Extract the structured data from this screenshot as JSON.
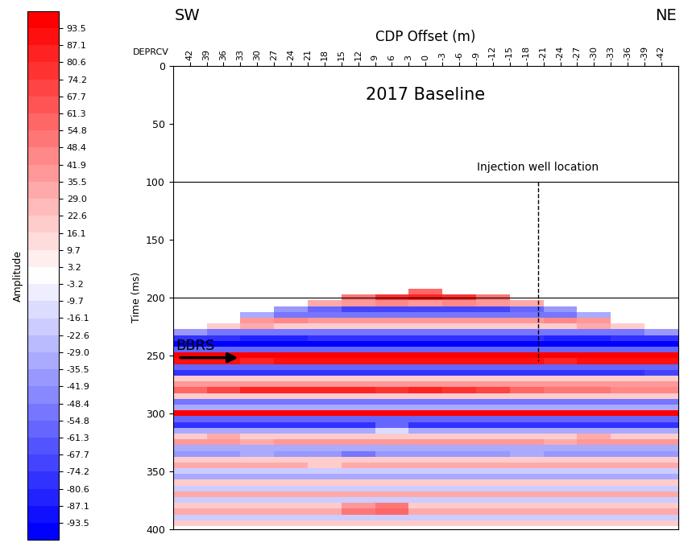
{
  "chart_data": {
    "type": "heatmap",
    "title": "2017 Baseline",
    "xlabel": "CDP Offset (m)",
    "ylabel": "Time (ms)",
    "x_header": "DEPRCV",
    "left_end_label": "SW",
    "right_end_label": "NE",
    "xlim": [
      45,
      -45
    ],
    "xticks": [
      42,
      39,
      36,
      33,
      30,
      27,
      24,
      21,
      18,
      15,
      12,
      9,
      6,
      3,
      0,
      -3,
      -6,
      -9,
      -12,
      -15,
      -18,
      -21,
      -24,
      -27,
      -30,
      -33,
      -36,
      -39,
      -42
    ],
    "ylim": [
      400,
      0
    ],
    "yticks": [
      0,
      50,
      100,
      150,
      200,
      250,
      300,
      350,
      400
    ],
    "time_lines": [
      100,
      200
    ],
    "injection_well": {
      "label": "Injection well location",
      "x": -20,
      "t_top": 100,
      "t_bottom": 255
    },
    "marker_arrow": {
      "label": "BBRS",
      "x": 33,
      "t": 252
    },
    "colorbar": {
      "label": "Amplitude",
      "range": [
        -100,
        100
      ],
      "ticks": [
        93.5,
        87.1,
        80.6,
        74.2,
        67.7,
        61.3,
        54.8,
        48.4,
        41.9,
        35.5,
        29.0,
        22.6,
        16.1,
        9.7,
        3.2,
        -3.2,
        -9.7,
        -16.1,
        -22.6,
        -29.0,
        -35.5,
        -41.9,
        -48.4,
        -54.8,
        -61.3,
        -67.7,
        -74.2,
        -80.6,
        -87.1,
        -93.5
      ]
    },
    "x": [
      42,
      36,
      30,
      24,
      18,
      12,
      6,
      0,
      -6,
      -12,
      -18,
      -24,
      -30,
      -36,
      -42
    ],
    "t": [
      195,
      200,
      205,
      210,
      215,
      220,
      225,
      230,
      235,
      240,
      245,
      250,
      255,
      260,
      265,
      270,
      275,
      280,
      285,
      290,
      295,
      300,
      305,
      310,
      315,
      320,
      325,
      330,
      335,
      340,
      345,
      350,
      355,
      360,
      365,
      370,
      375,
      380,
      385,
      390,
      395
    ],
    "amplitude": [
      [
        null,
        null,
        null,
        null,
        null,
        null,
        null,
        60,
        null,
        null,
        null,
        null,
        null,
        null,
        null
      ],
      [
        null,
        null,
        null,
        null,
        null,
        50,
        80,
        85,
        80,
        50,
        null,
        null,
        null,
        null,
        null
      ],
      [
        null,
        null,
        null,
        null,
        30,
        40,
        45,
        40,
        45,
        40,
        30,
        null,
        null,
        null,
        null
      ],
      [
        null,
        null,
        null,
        -40,
        -60,
        -70,
        -70,
        -70,
        -70,
        -70,
        -60,
        -40,
        null,
        null,
        null
      ],
      [
        null,
        null,
        -30,
        -50,
        -50,
        -50,
        -50,
        -50,
        -50,
        -50,
        -50,
        -50,
        -30,
        null,
        null
      ],
      [
        null,
        null,
        40,
        45,
        40,
        40,
        40,
        40,
        40,
        40,
        40,
        45,
        40,
        null,
        null
      ],
      [
        null,
        20,
        30,
        20,
        20,
        20,
        20,
        20,
        20,
        20,
        20,
        20,
        30,
        20,
        null
      ],
      [
        -40,
        -50,
        -50,
        -50,
        -50,
        -50,
        -50,
        -50,
        -50,
        -50,
        -50,
        -50,
        -50,
        -50,
        -40
      ],
      [
        -80,
        -80,
        -85,
        -85,
        -80,
        -80,
        -80,
        -80,
        -80,
        -80,
        -80,
        -85,
        -85,
        -80,
        -80
      ],
      [
        -95,
        -95,
        -95,
        -95,
        -95,
        -95,
        -95,
        -95,
        -95,
        -95,
        -95,
        -95,
        -95,
        -95,
        -95
      ],
      [
        -60,
        -60,
        -55,
        -60,
        -60,
        -60,
        -60,
        -60,
        -60,
        -60,
        -60,
        -55,
        -60,
        -60,
        -60
      ],
      [
        95,
        95,
        95,
        95,
        95,
        95,
        95,
        95,
        95,
        95,
        95,
        95,
        95,
        95,
        95
      ],
      [
        90,
        90,
        85,
        90,
        90,
        90,
        90,
        90,
        90,
        90,
        90,
        85,
        90,
        90,
        90
      ],
      [
        -60,
        -60,
        -60,
        -60,
        -60,
        -60,
        -60,
        -60,
        -60,
        -60,
        -60,
        -60,
        -60,
        -60,
        -60
      ],
      [
        -80,
        -75,
        -80,
        -80,
        -80,
        -80,
        -80,
        -80,
        -80,
        -80,
        -80,
        -80,
        -75,
        -75,
        -70
      ],
      [
        20,
        20,
        20,
        20,
        20,
        20,
        20,
        20,
        20,
        20,
        20,
        20,
        20,
        20,
        20
      ],
      [
        40,
        40,
        40,
        40,
        40,
        40,
        40,
        40,
        40,
        40,
        40,
        40,
        40,
        40,
        40
      ],
      [
        60,
        70,
        85,
        85,
        85,
        85,
        80,
        85,
        80,
        70,
        60,
        50,
        50,
        45,
        45
      ],
      [
        20,
        20,
        20,
        20,
        20,
        20,
        20,
        20,
        20,
        20,
        20,
        20,
        20,
        20,
        20
      ],
      [
        -50,
        -50,
        -50,
        -50,
        -50,
        -50,
        -50,
        -50,
        -50,
        -50,
        -50,
        -50,
        -50,
        -50,
        -50
      ],
      [
        -30,
        -30,
        -30,
        -30,
        -30,
        -30,
        -30,
        -30,
        -30,
        -30,
        -30,
        -30,
        -30,
        -30,
        -30
      ],
      [
        95,
        95,
        95,
        95,
        95,
        95,
        95,
        95,
        95,
        95,
        95,
        95,
        95,
        95,
        95
      ],
      [
        -60,
        -60,
        -60,
        -60,
        -60,
        -60,
        -60,
        -60,
        -60,
        -60,
        -60,
        -60,
        -60,
        -60,
        -60
      ],
      [
        -80,
        -80,
        -80,
        -80,
        -80,
        -80,
        -60,
        -80,
        -80,
        -80,
        -80,
        -80,
        -80,
        -80,
        -80
      ],
      [
        -30,
        -30,
        -30,
        -30,
        -30,
        -30,
        -10,
        -30,
        -30,
        -30,
        -30,
        -30,
        -30,
        -30,
        -30
      ],
      [
        20,
        30,
        20,
        20,
        20,
        20,
        20,
        20,
        20,
        20,
        20,
        20,
        30,
        20,
        20
      ],
      [
        40,
        40,
        35,
        40,
        40,
        40,
        40,
        40,
        40,
        40,
        40,
        35,
        40,
        40,
        40
      ],
      [
        -30,
        -30,
        -30,
        -30,
        -30,
        -30,
        -30,
        -30,
        -30,
        -30,
        -30,
        -30,
        -30,
        -30,
        -30
      ],
      [
        -40,
        -40,
        -30,
        -40,
        -40,
        -50,
        -40,
        -40,
        -40,
        -40,
        -30,
        -40,
        -40,
        -40,
        -40
      ],
      [
        20,
        20,
        20,
        20,
        20,
        20,
        20,
        20,
        20,
        20,
        20,
        20,
        20,
        20,
        20
      ],
      [
        30,
        30,
        30,
        30,
        20,
        30,
        30,
        30,
        30,
        30,
        30,
        30,
        30,
        30,
        30
      ],
      [
        -20,
        -20,
        -20,
        -20,
        -20,
        -20,
        -20,
        -20,
        -20,
        -20,
        -20,
        -20,
        -20,
        -20,
        -20
      ],
      [
        -30,
        -30,
        -30,
        -30,
        -30,
        -30,
        -30,
        -30,
        -30,
        -30,
        -30,
        -30,
        -30,
        -30,
        -30
      ],
      [
        20,
        20,
        20,
        20,
        20,
        20,
        20,
        20,
        20,
        20,
        20,
        20,
        20,
        20,
        20
      ],
      [
        -20,
        -20,
        -20,
        -20,
        -20,
        -20,
        -20,
        -20,
        -20,
        -20,
        -20,
        -20,
        -20,
        -20,
        -20
      ],
      [
        30,
        30,
        30,
        30,
        30,
        30,
        30,
        30,
        30,
        30,
        30,
        30,
        30,
        30,
        30
      ],
      [
        -20,
        -20,
        -20,
        -20,
        -20,
        -20,
        -20,
        -20,
        -20,
        -20,
        -20,
        -20,
        -20,
        -20,
        -20
      ],
      [
        20,
        20,
        20,
        20,
        20,
        40,
        50,
        20,
        20,
        20,
        20,
        20,
        20,
        20,
        20
      ],
      [
        30,
        30,
        30,
        30,
        30,
        50,
        60,
        30,
        30,
        30,
        30,
        30,
        30,
        30,
        30
      ],
      [
        -20,
        -20,
        -20,
        -20,
        -20,
        -20,
        -20,
        -20,
        -20,
        -20,
        -20,
        -20,
        -20,
        -20,
        -20
      ],
      [
        20,
        20,
        20,
        20,
        20,
        20,
        20,
        20,
        20,
        20,
        20,
        20,
        20,
        20,
        20
      ]
    ]
  }
}
